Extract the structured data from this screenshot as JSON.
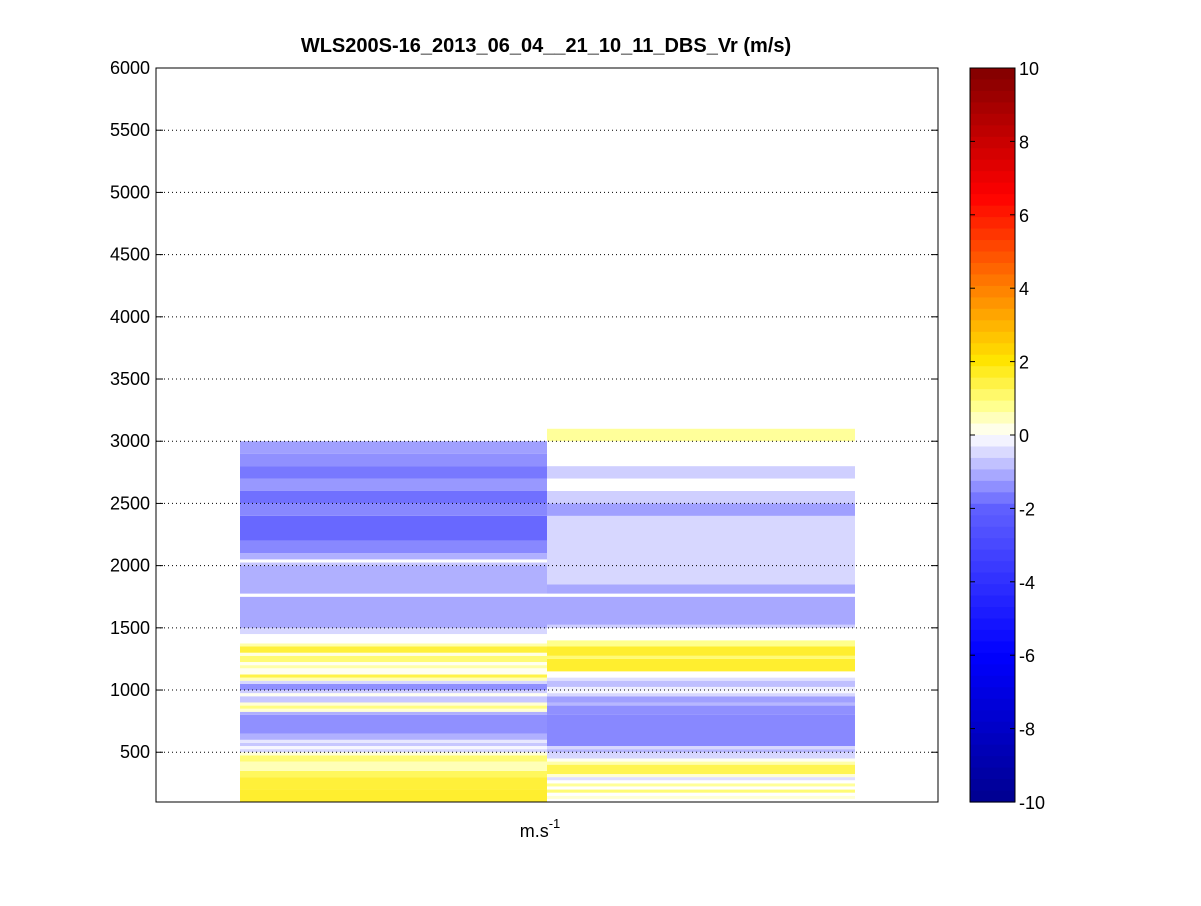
{
  "chart_data": {
    "type": "heatmap",
    "title": "WLS200S-16_2013_06_04__21_10_11_DBS_Vr (m/s)",
    "xlabel_base": "m.s",
    "xlabel_exp": "-1",
    "ylabel": "",
    "ylim": [
      100,
      6000
    ],
    "y_ticks": [
      500,
      1000,
      1500,
      2000,
      2500,
      3000,
      3500,
      4000,
      4500,
      5000,
      5500,
      6000
    ],
    "grid": "horizontal dotted",
    "colorbar": {
      "range": [
        -10,
        10
      ],
      "ticks": [
        -10,
        -8,
        -6,
        -4,
        -2,
        0,
        2,
        4,
        6,
        8,
        10
      ],
      "colormap": "blue-white-yellow-red",
      "colors": {
        "dark_blue": "#00008f",
        "blue": "#0000ff",
        "white": "#ffffff",
        "yellow": "#ffff00",
        "orange": "#ff8000",
        "red": "#ff0000",
        "dark_red": "#800000"
      }
    },
    "columns": [
      {
        "cells": [
          {
            "y0": 100,
            "y1": 200,
            "v": 1.6
          },
          {
            "y0": 200,
            "y1": 300,
            "v": 1.5
          },
          {
            "y0": 300,
            "y1": 350,
            "v": 1.2
          },
          {
            "y0": 350,
            "y1": 425,
            "v": 0.5
          },
          {
            "y0": 425,
            "y1": 475,
            "v": 1.0
          },
          {
            "y0": 475,
            "y1": 500,
            "v": 0.3
          },
          {
            "y0": 500,
            "y1": 525,
            "v": -0.5
          },
          {
            "y0": 525,
            "y1": 550,
            "v": -0.1
          },
          {
            "y0": 550,
            "y1": 575,
            "v": -0.7
          },
          {
            "y0": 575,
            "y1": 600,
            "v": -0.3
          },
          {
            "y0": 600,
            "y1": 650,
            "v": -1.0
          },
          {
            "y0": 650,
            "y1": 800,
            "v": -1.4
          },
          {
            "y0": 800,
            "y1": 825,
            "v": -1.0
          },
          {
            "y0": 825,
            "y1": 850,
            "v": 0.3
          },
          {
            "y0": 850,
            "y1": 875,
            "v": 0.9
          },
          {
            "y0": 875,
            "y1": 900,
            "v": 0.3
          },
          {
            "y0": 900,
            "y1": 950,
            "v": -0.7
          },
          {
            "y0": 950,
            "y1": 975,
            "v": 0.1
          },
          {
            "y0": 975,
            "y1": 1000,
            "v": -0.6
          },
          {
            "y0": 1000,
            "y1": 1050,
            "v": -1.4
          },
          {
            "y0": 1050,
            "y1": 1075,
            "v": -0.5
          },
          {
            "y0": 1075,
            "y1": 1100,
            "v": 0.5
          },
          {
            "y0": 1100,
            "y1": 1125,
            "v": 1.4
          },
          {
            "y0": 1125,
            "y1": 1175,
            "v": 0.1
          },
          {
            "y0": 1175,
            "y1": 1200,
            "v": 0.6
          },
          {
            "y0": 1200,
            "y1": 1225,
            "v": 0.1
          },
          {
            "y0": 1225,
            "y1": 1275,
            "v": 1.0
          },
          {
            "y0": 1275,
            "y1": 1300,
            "v": 0.2
          },
          {
            "y0": 1300,
            "y1": 1350,
            "v": 1.5
          },
          {
            "y0": 1350,
            "y1": 1375,
            "v": 0.6
          },
          {
            "y0": 1375,
            "y1": 1450,
            "v": 0.0
          },
          {
            "y0": 1450,
            "y1": 1500,
            "v": -0.5
          },
          {
            "y0": 1500,
            "y1": 1750,
            "v": -1.1
          },
          {
            "y0": 1750,
            "y1": 1775,
            "v": 0.0
          },
          {
            "y0": 1775,
            "y1": 2000,
            "v": -1.0
          },
          {
            "y0": 2000,
            "y1": 2025,
            "v": -0.7
          },
          {
            "y0": 2025,
            "y1": 2050,
            "v": 0.0
          },
          {
            "y0": 2050,
            "y1": 2100,
            "v": -1.0
          },
          {
            "y0": 2100,
            "y1": 2200,
            "v": -1.5
          },
          {
            "y0": 2200,
            "y1": 2400,
            "v": -1.9
          },
          {
            "y0": 2400,
            "y1": 2500,
            "v": -1.5
          },
          {
            "y0": 2500,
            "y1": 2600,
            "v": -1.8
          },
          {
            "y0": 2600,
            "y1": 2700,
            "v": -1.3
          },
          {
            "y0": 2700,
            "y1": 2800,
            "v": -1.7
          },
          {
            "y0": 2800,
            "y1": 2900,
            "v": -1.4
          },
          {
            "y0": 2900,
            "y1": 3000,
            "v": -1.2
          }
        ]
      },
      {
        "cells": [
          {
            "y0": 125,
            "y1": 150,
            "v": 0.3
          },
          {
            "y0": 150,
            "y1": 175,
            "v": 0.0
          },
          {
            "y0": 175,
            "y1": 200,
            "v": 1.0
          },
          {
            "y0": 200,
            "y1": 225,
            "v": 0.0
          },
          {
            "y0": 225,
            "y1": 250,
            "v": 0.7
          },
          {
            "y0": 250,
            "y1": 275,
            "v": 0.0
          },
          {
            "y0": 275,
            "y1": 300,
            "v": -0.4
          },
          {
            "y0": 300,
            "y1": 325,
            "v": 0.3
          },
          {
            "y0": 325,
            "y1": 400,
            "v": 1.3
          },
          {
            "y0": 400,
            "y1": 425,
            "v": 0.6
          },
          {
            "y0": 425,
            "y1": 450,
            "v": 0.1
          },
          {
            "y0": 450,
            "y1": 500,
            "v": -0.5
          },
          {
            "y0": 500,
            "y1": 525,
            "v": -0.9
          },
          {
            "y0": 525,
            "y1": 550,
            "v": -0.5
          },
          {
            "y0": 550,
            "y1": 800,
            "v": -1.5
          },
          {
            "y0": 800,
            "y1": 875,
            "v": -1.4
          },
          {
            "y0": 875,
            "y1": 900,
            "v": -0.9
          },
          {
            "y0": 900,
            "y1": 950,
            "v": -1.2
          },
          {
            "y0": 950,
            "y1": 975,
            "v": -0.5
          },
          {
            "y0": 975,
            "y1": 1000,
            "v": -0.1
          },
          {
            "y0": 1000,
            "y1": 1025,
            "v": -0.2
          },
          {
            "y0": 1025,
            "y1": 1075,
            "v": -0.8
          },
          {
            "y0": 1075,
            "y1": 1100,
            "v": -0.4
          },
          {
            "y0": 1100,
            "y1": 1150,
            "v": 0.0
          },
          {
            "y0": 1150,
            "y1": 1250,
            "v": 1.6
          },
          {
            "y0": 1250,
            "y1": 1275,
            "v": 1.0
          },
          {
            "y0": 1275,
            "y1": 1350,
            "v": 1.6
          },
          {
            "y0": 1350,
            "y1": 1400,
            "v": 0.8
          },
          {
            "y0": 1400,
            "y1": 1500,
            "v": 0.0
          },
          {
            "y0": 1500,
            "y1": 1525,
            "v": -0.6
          },
          {
            "y0": 1525,
            "y1": 1750,
            "v": -1.1
          },
          {
            "y0": 1750,
            "y1": 1775,
            "v": 0.0
          },
          {
            "y0": 1775,
            "y1": 1850,
            "v": -1.1
          },
          {
            "y0": 1850,
            "y1": 2400,
            "v": -0.5
          },
          {
            "y0": 2400,
            "y1": 2500,
            "v": -1.2
          },
          {
            "y0": 2500,
            "y1": 2600,
            "v": -0.6
          },
          {
            "y0": 2600,
            "y1": 2700,
            "v": 0.0
          },
          {
            "y0": 2700,
            "y1": 2800,
            "v": -0.6
          },
          {
            "y0": 2800,
            "y1": 3000,
            "v": 0.0
          },
          {
            "y0": 3000,
            "y1": 3100,
            "v": 0.7
          }
        ]
      }
    ]
  }
}
